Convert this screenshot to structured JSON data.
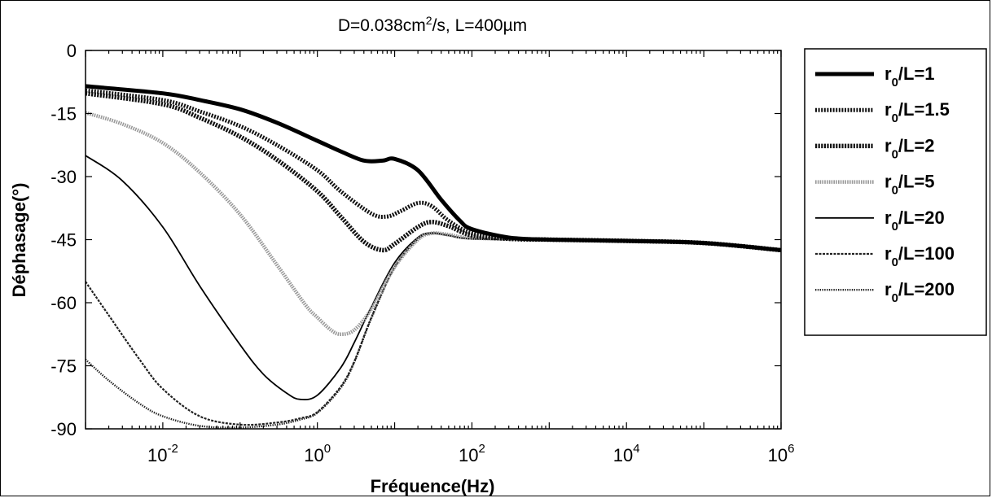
{
  "chart_data": {
    "type": "line",
    "title": {
      "prefix": "D=0.038cm",
      "sup": "2",
      "suffix": "/s, L=400µm"
    },
    "xlabel": "Fréquence(Hz)",
    "ylabel": "Déphasage(°)",
    "x_scale": "log",
    "xlim": [
      0.001,
      1000000
    ],
    "ylim": [
      -90,
      0
    ],
    "x_ticks": [
      {
        "value": 0.01,
        "base": "10",
        "exp": "-2"
      },
      {
        "value": 1,
        "base": "10",
        "exp": "0"
      },
      {
        "value": 100,
        "base": "10",
        "exp": "2"
      },
      {
        "value": 10000,
        "base": "10",
        "exp": "4"
      },
      {
        "value": 1000000,
        "base": "10",
        "exp": "6"
      }
    ],
    "y_ticks": [
      {
        "value": 0,
        "label": "0"
      },
      {
        "value": -15,
        "label": "-15"
      },
      {
        "value": -30,
        "label": "-30"
      },
      {
        "value": -45,
        "label": "-45"
      },
      {
        "value": -60,
        "label": "-60"
      },
      {
        "value": -75,
        "label": "-75"
      },
      {
        "value": -90,
        "label": "-90"
      }
    ],
    "grid": false,
    "legend_position": "outside-right",
    "series": [
      {
        "name": "r0/L=1",
        "label_pre": "r",
        "label_sub": "0",
        "label_post": "/L=1",
        "style": "thick-solid",
        "x": [
          0.001,
          0.01,
          0.03,
          0.1,
          0.3,
          1,
          2,
          4,
          7,
          10,
          20,
          40,
          70,
          100,
          300,
          1000,
          10000,
          100000,
          1000000
        ],
        "y": [
          -8.5,
          -10.2,
          -11.8,
          -14,
          -17.2,
          -21.5,
          -24,
          -26.2,
          -26.2,
          -25.8,
          -28.5,
          -35.5,
          -40.5,
          -42.5,
          -44.5,
          -45,
          -45.3,
          -45.8,
          -47.5
        ]
      },
      {
        "name": "r0/L=1.5",
        "label_pre": "r",
        "label_sub": "0",
        "label_post": "/L=1.5",
        "style": "dotted-heavy",
        "x": [
          0.001,
          0.01,
          0.03,
          0.1,
          0.3,
          1,
          2,
          5,
          8,
          12,
          20,
          30,
          50,
          100,
          300,
          1000,
          10000,
          100000,
          1000000
        ],
        "y": [
          -9.5,
          -11.8,
          -14.5,
          -18,
          -22.5,
          -28.5,
          -33.5,
          -38.8,
          -39.5,
          -38.2,
          -36.3,
          -37,
          -40.5,
          -43.5,
          -44.8,
          -45,
          -45.3,
          -45.8,
          -47.5
        ]
      },
      {
        "name": "r0/L=2",
        "label_pre": "r",
        "label_sub": "0",
        "label_post": "/L=2",
        "style": "dotted-heavy2",
        "x": [
          0.001,
          0.01,
          0.03,
          0.1,
          0.3,
          1,
          2,
          4,
          7,
          10,
          20,
          30,
          50,
          100,
          300,
          1000,
          10000,
          100000,
          1000000
        ],
        "y": [
          -10.2,
          -12.8,
          -16,
          -20.5,
          -26,
          -33.5,
          -39.5,
          -45.5,
          -47.5,
          -46,
          -42,
          -40.8,
          -41.8,
          -44,
          -44.8,
          -45,
          -45.3,
          -45.8,
          -47.5
        ]
      },
      {
        "name": "r0/L=5",
        "label_pre": "r",
        "label_sub": "0",
        "label_post": "/L=5",
        "style": "gray-dotted",
        "x": [
          0.001,
          0.003,
          0.01,
          0.03,
          0.1,
          0.3,
          0.7,
          1,
          1.5,
          2,
          3,
          5,
          10,
          20,
          30,
          50,
          100,
          1000,
          10000,
          100000,
          1000000
        ],
        "y": [
          -14.8,
          -17.5,
          -22,
          -29,
          -39,
          -51,
          -60.5,
          -63.5,
          -66.5,
          -67.5,
          -66.5,
          -61.5,
          -51.5,
          -45,
          -43.5,
          -43.8,
          -44.6,
          -45,
          -45.3,
          -45.8,
          -47.5
        ]
      },
      {
        "name": "r0/L=20",
        "label_pre": "r",
        "label_sub": "0",
        "label_post": "/L=20",
        "style": "thin-solid",
        "x": [
          0.001,
          0.003,
          0.01,
          0.03,
          0.1,
          0.2,
          0.4,
          0.6,
          1,
          2,
          3,
          5,
          10,
          20,
          30,
          50,
          100,
          1000,
          10000,
          100000,
          1000000
        ],
        "y": [
          -25,
          -31,
          -42,
          -56,
          -70,
          -77,
          -81.5,
          -83,
          -82,
          -75.5,
          -69.5,
          -61,
          -50.5,
          -44.5,
          -43.4,
          -44,
          -44.8,
          -45,
          -45.3,
          -45.8,
          -47.5
        ]
      },
      {
        "name": "r0/L=100",
        "label_pre": "r",
        "label_sub": "0",
        "label_post": "/L=100",
        "style": "thin-dashed",
        "x": [
          0.001,
          0.002,
          0.005,
          0.01,
          0.03,
          0.1,
          0.3,
          0.6,
          1,
          2,
          3,
          5,
          10,
          20,
          30,
          50,
          100,
          1000,
          10000,
          100000,
          1000000
        ],
        "y": [
          -55,
          -63,
          -73.5,
          -80.5,
          -87,
          -89,
          -88.5,
          -87.5,
          -86,
          -80,
          -74,
          -63.5,
          -51.5,
          -44.8,
          -43.5,
          -44,
          -44.8,
          -45,
          -45.3,
          -45.8,
          -47.5
        ]
      },
      {
        "name": "r0/L=200",
        "label_pre": "r",
        "label_sub": "0",
        "label_post": "/L=200",
        "style": "thin-dotted",
        "x": [
          0.001,
          0.002,
          0.005,
          0.01,
          0.03,
          0.1,
          0.3,
          0.6,
          1,
          2,
          3,
          5,
          10,
          20,
          30,
          50,
          100,
          1000,
          10000,
          100000,
          1000000
        ],
        "y": [
          -73.5,
          -78.5,
          -84,
          -87,
          -89.3,
          -89.7,
          -89,
          -87.8,
          -86.2,
          -80.3,
          -74.2,
          -63.7,
          -51.6,
          -44.9,
          -43.5,
          -44,
          -44.8,
          -45,
          -45.3,
          -45.8,
          -47.5
        ]
      }
    ]
  }
}
